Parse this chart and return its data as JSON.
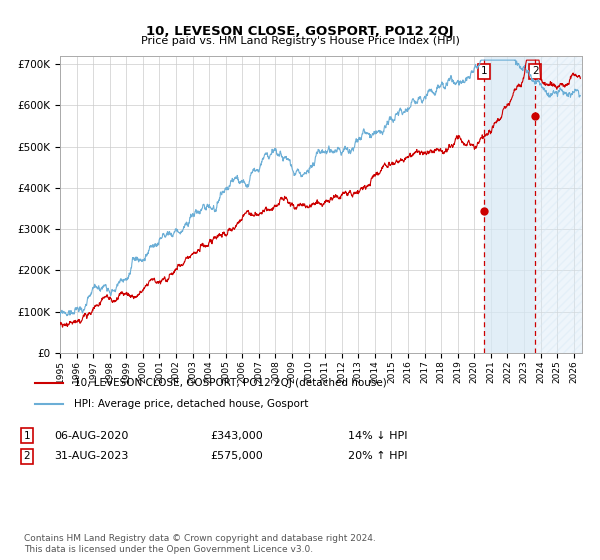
{
  "title": "10, LEVESON CLOSE, GOSPORT, PO12 2QJ",
  "subtitle": "Price paid vs. HM Land Registry's House Price Index (HPI)",
  "ylim": [
    0,
    720000
  ],
  "xlim_start": 1995.0,
  "xlim_end": 2026.5,
  "yticks": [
    0,
    100000,
    200000,
    300000,
    400000,
    500000,
    600000,
    700000
  ],
  "ytick_labels": [
    "£0",
    "£100K",
    "£200K",
    "£300K",
    "£400K",
    "£500K",
    "£600K",
    "£700K"
  ],
  "xticks": [
    1995,
    1996,
    1997,
    1998,
    1999,
    2000,
    2001,
    2002,
    2003,
    2004,
    2005,
    2006,
    2007,
    2008,
    2009,
    2010,
    2011,
    2012,
    2013,
    2014,
    2015,
    2016,
    2017,
    2018,
    2019,
    2020,
    2021,
    2022,
    2023,
    2024,
    2025,
    2026
  ],
  "hpi_color": "#6baed6",
  "price_color": "#cc0000",
  "vline_color": "#cc0000",
  "shade_color": "#d6e8f5",
  "transaction1": {
    "date_num": 2020.58,
    "price": 343000,
    "label": "1",
    "date_str": "06-AUG-2020",
    "pct": "14% ↓ HPI"
  },
  "transaction2": {
    "date_num": 2023.67,
    "price": 575000,
    "label": "2",
    "date_str": "31-AUG-2023",
    "pct": "20% ↑ HPI"
  },
  "legend_line1": "10, LEVESON CLOSE, GOSPORT, PO12 2QJ (detached house)",
  "legend_line2": "HPI: Average price, detached house, Gosport",
  "footer": "Contains HM Land Registry data © Crown copyright and database right 2024.\nThis data is licensed under the Open Government Licence v3.0."
}
